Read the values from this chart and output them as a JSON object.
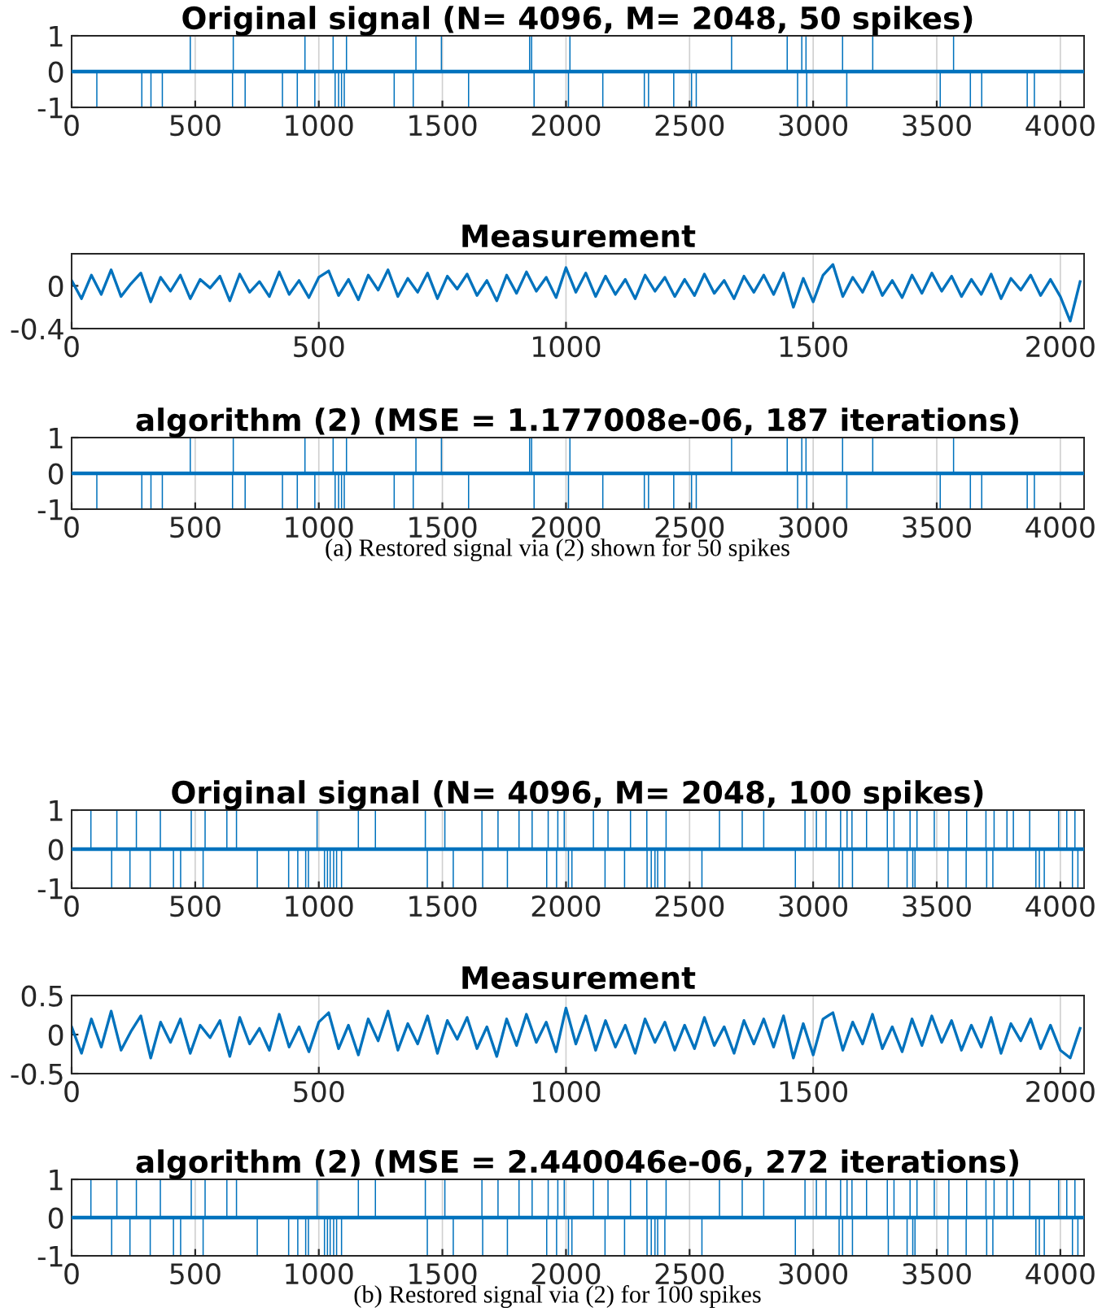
{
  "chart_data": [
    {
      "type": "bar",
      "title": "Original signal (N= 4096, M= 2048, 50 spikes)",
      "color": "#0072bd",
      "x": [
        102,
        284,
        321,
        367,
        480,
        651,
        654,
        702,
        853,
        913,
        944,
        984,
        1058,
        1066,
        1080,
        1092,
        1103,
        1112,
        1305,
        1382,
        1393,
        1496,
        1606,
        1853,
        1861,
        1871,
        2010,
        2016,
        2149,
        2317,
        2334,
        2436,
        2508,
        2527,
        2670,
        2895,
        2937,
        2954,
        2971,
        2974,
        3119,
        3136,
        3241,
        3514,
        3568,
        3636,
        3682,
        3866,
        3895
      ],
      "values": [
        -1,
        -1,
        -1,
        -1,
        1,
        -1,
        1,
        -1,
        -1,
        -1,
        1,
        -1,
        1,
        -1,
        -1,
        -1,
        -1,
        1,
        -1,
        -1,
        1,
        1,
        -1,
        1,
        1,
        -1,
        -1,
        1,
        -1,
        -1,
        -1,
        -1,
        -1,
        -1,
        1,
        1,
        -1,
        1,
        1,
        -1,
        1,
        -1,
        1,
        -1,
        1,
        -1,
        -1,
        -1,
        -1
      ],
      "ref_lines": [
        {
          "axis": "y",
          "value": 0,
          "color": "#0072bd"
        }
      ],
      "xlim": [
        0,
        4096
      ],
      "xticks": [
        0,
        500,
        1000,
        1500,
        2000,
        2500,
        3000,
        3500,
        4000
      ],
      "ylim": [
        -1,
        1
      ],
      "yticks": [
        -1,
        0,
        1
      ],
      "grid": "x"
    },
    {
      "type": "line",
      "title": "Measurement",
      "color": "#0072bd",
      "x": [
        0,
        20,
        40,
        60,
        80,
        100,
        120,
        140,
        160,
        180,
        200,
        220,
        240,
        260,
        280,
        300,
        320,
        340,
        360,
        380,
        400,
        420,
        440,
        460,
        480,
        500,
        520,
        540,
        560,
        580,
        600,
        620,
        640,
        660,
        680,
        700,
        720,
        740,
        760,
        780,
        800,
        820,
        840,
        860,
        880,
        900,
        920,
        940,
        960,
        980,
        1000,
        1020,
        1040,
        1060,
        1080,
        1100,
        1120,
        1140,
        1160,
        1180,
        1200,
        1220,
        1240,
        1260,
        1280,
        1300,
        1320,
        1340,
        1360,
        1380,
        1400,
        1420,
        1440,
        1460,
        1480,
        1500,
        1520,
        1540,
        1560,
        1580,
        1600,
        1620,
        1640,
        1660,
        1680,
        1700,
        1720,
        1740,
        1760,
        1780,
        1800,
        1820,
        1840,
        1860,
        1880,
        1900,
        1920,
        1940,
        1960,
        1980,
        2000,
        2020,
        2040
      ],
      "values": [
        0.05,
        -0.12,
        0.1,
        -0.08,
        0.15,
        -0.1,
        0.02,
        0.12,
        -0.15,
        0.08,
        -0.05,
        0.1,
        -0.12,
        0.06,
        -0.02,
        0.09,
        -0.14,
        0.11,
        -0.06,
        0.04,
        -0.1,
        0.13,
        -0.08,
        0.05,
        -0.11,
        0.08,
        0.14,
        -0.09,
        0.06,
        -0.13,
        0.1,
        -0.04,
        0.15,
        -0.1,
        0.07,
        -0.06,
        0.12,
        -0.12,
        0.09,
        -0.03,
        0.11,
        -0.09,
        0.05,
        -0.14,
        0.1,
        -0.07,
        0.13,
        -0.05,
        0.08,
        -0.11,
        0.17,
        -0.06,
        0.12,
        -0.1,
        0.09,
        -0.08,
        0.06,
        -0.12,
        0.1,
        -0.05,
        0.08,
        -0.1,
        0.06,
        -0.09,
        0.11,
        -0.07,
        0.05,
        -0.12,
        0.09,
        -0.06,
        0.1,
        -0.08,
        0.12,
        -0.2,
        0.07,
        -0.15,
        0.1,
        0.2,
        -0.1,
        0.08,
        -0.06,
        0.13,
        -0.09,
        0.05,
        -0.11,
        0.1,
        -0.07,
        0.12,
        -0.05,
        0.09,
        -0.1,
        0.06,
        -0.08,
        0.11,
        -0.12,
        0.07,
        -0.04,
        0.1,
        -0.09,
        0.06,
        -0.1,
        -0.33,
        0.04
      ],
      "xlim": [
        0,
        2048
      ],
      "xticks": [
        0,
        500,
        1000,
        1500,
        2000
      ],
      "ylim": [
        -0.4,
        0.3
      ],
      "yticks": [
        -0.4,
        0
      ],
      "grid": "x"
    },
    {
      "type": "bar",
      "title": "algorithm (2) (MSE = 1.177008e-06, 187 iterations)",
      "color": "#0072bd",
      "x": [
        102,
        284,
        321,
        367,
        480,
        651,
        654,
        702,
        853,
        913,
        944,
        984,
        1058,
        1066,
        1080,
        1092,
        1103,
        1112,
        1305,
        1382,
        1393,
        1496,
        1606,
        1853,
        1861,
        1871,
        2010,
        2016,
        2149,
        2317,
        2334,
        2436,
        2508,
        2527,
        2670,
        2895,
        2937,
        2954,
        2971,
        2974,
        3119,
        3136,
        3241,
        3514,
        3568,
        3636,
        3682,
        3866,
        3895
      ],
      "values": [
        -1,
        -1,
        -1,
        -1,
        1,
        -1,
        1,
        -1,
        -1,
        -1,
        1,
        -1,
        1,
        -1,
        -1,
        -1,
        -1,
        1,
        -1,
        -1,
        1,
        1,
        -1,
        1,
        1,
        -1,
        -1,
        1,
        -1,
        -1,
        -1,
        -1,
        -1,
        -1,
        1,
        1,
        -1,
        1,
        1,
        -1,
        1,
        -1,
        1,
        -1,
        1,
        -1,
        -1,
        -1,
        -1
      ],
      "ref_lines": [
        {
          "axis": "y",
          "value": 0,
          "color": "#0072bd"
        }
      ],
      "xlim": [
        0,
        4096
      ],
      "xticks": [
        0,
        500,
        1000,
        1500,
        2000,
        2500,
        3000,
        3500,
        4000
      ],
      "ylim": [
        -1,
        1
      ],
      "yticks": [
        -1,
        0,
        1
      ],
      "grid": "x",
      "annotations": [
        "(a) Restored signal via (2) shown for 50 spikes"
      ]
    },
    {
      "type": "bar",
      "title": "Original signal (N= 4096, M= 2048, 100 spikes)",
      "color": "#0072bd",
      "x": [
        78,
        162,
        183,
        236,
        262,
        318,
        359,
        412,
        441,
        484,
        532,
        540,
        628,
        667,
        751,
        878,
        915,
        947,
        958,
        993,
        1023,
        1035,
        1046,
        1060,
        1072,
        1092,
        1160,
        1229,
        1431,
        1439,
        1510,
        1544,
        1660,
        1663,
        1725,
        1763,
        1810,
        1863,
        1922,
        1928,
        1962,
        1967,
        1993,
        2010,
        2024,
        2111,
        2158,
        2170,
        2237,
        2261,
        2327,
        2328,
        2345,
        2360,
        2371,
        2400,
        2405,
        2550,
        2621,
        2713,
        2800,
        2928,
        2967,
        3013,
        3052,
        3105,
        3111,
        3119,
        3137,
        3157,
        3159,
        3216,
        3300,
        3304,
        3327,
        3380,
        3392,
        3403,
        3412,
        3420,
        3490,
        3545,
        3549,
        3619,
        3621,
        3699,
        3702,
        3727,
        3732,
        3784,
        3810,
        3876,
        3901,
        3915,
        3935,
        3993,
        4026,
        4049,
        4059,
        4071
      ],
      "values": [
        1,
        -1,
        1,
        -1,
        1,
        -1,
        1,
        -1,
        -1,
        1,
        -1,
        1,
        1,
        1,
        -1,
        -1,
        -1,
        -1,
        -1,
        1,
        -1,
        -1,
        -1,
        -1,
        -1,
        -1,
        1,
        1,
        1,
        -1,
        1,
        -1,
        1,
        -1,
        1,
        -1,
        1,
        1,
        -1,
        1,
        -1,
        1,
        1,
        -1,
        -1,
        1,
        -1,
        1,
        -1,
        1,
        1,
        -1,
        -1,
        -1,
        -1,
        -1,
        1,
        -1,
        1,
        1,
        1,
        -1,
        1,
        1,
        1,
        -1,
        1,
        -1,
        1,
        1,
        -1,
        1,
        1,
        -1,
        1,
        -1,
        1,
        -1,
        -1,
        1,
        1,
        -1,
        1,
        -1,
        1,
        1,
        -1,
        -1,
        1,
        1,
        1,
        1,
        -1,
        -1,
        -1,
        1,
        1,
        -1,
        1,
        -1
      ],
      "ref_lines": [
        {
          "axis": "y",
          "value": 0,
          "color": "#0072bd"
        }
      ],
      "xlim": [
        0,
        4096
      ],
      "xticks": [
        0,
        500,
        1000,
        1500,
        2000,
        2500,
        3000,
        3500,
        4000
      ],
      "ylim": [
        -1,
        1
      ],
      "yticks": [
        -1,
        0,
        1
      ],
      "grid": "x"
    },
    {
      "type": "line",
      "title": "Measurement",
      "color": "#0072bd",
      "x": [
        0,
        20,
        40,
        60,
        80,
        100,
        120,
        140,
        160,
        180,
        200,
        220,
        240,
        260,
        280,
        300,
        320,
        340,
        360,
        380,
        400,
        420,
        440,
        460,
        480,
        500,
        520,
        540,
        560,
        580,
        600,
        620,
        640,
        660,
        680,
        700,
        720,
        740,
        760,
        780,
        800,
        820,
        840,
        860,
        880,
        900,
        920,
        940,
        960,
        980,
        1000,
        1020,
        1040,
        1060,
        1080,
        1100,
        1120,
        1140,
        1160,
        1180,
        1200,
        1220,
        1240,
        1260,
        1280,
        1300,
        1320,
        1340,
        1360,
        1380,
        1400,
        1420,
        1440,
        1460,
        1480,
        1500,
        1520,
        1540,
        1560,
        1580,
        1600,
        1620,
        1640,
        1660,
        1680,
        1700,
        1720,
        1740,
        1760,
        1780,
        1800,
        1820,
        1840,
        1860,
        1880,
        1900,
        1920,
        1940,
        1960,
        1980,
        2000,
        2020,
        2040
      ],
      "values": [
        0.1,
        -0.24,
        0.2,
        -0.16,
        0.3,
        -0.2,
        0.04,
        0.24,
        -0.3,
        0.16,
        -0.1,
        0.2,
        -0.24,
        0.12,
        -0.04,
        0.18,
        -0.28,
        0.22,
        -0.12,
        0.08,
        -0.2,
        0.26,
        -0.16,
        0.1,
        -0.22,
        0.16,
        0.28,
        -0.18,
        0.12,
        -0.26,
        0.2,
        -0.08,
        0.3,
        -0.2,
        0.14,
        -0.12,
        0.24,
        -0.24,
        0.18,
        -0.06,
        0.22,
        -0.18,
        0.1,
        -0.28,
        0.2,
        -0.14,
        0.26,
        -0.1,
        0.16,
        -0.22,
        0.34,
        -0.12,
        0.24,
        -0.2,
        0.18,
        -0.16,
        0.12,
        -0.24,
        0.2,
        -0.1,
        0.16,
        -0.2,
        0.12,
        -0.18,
        0.22,
        -0.14,
        0.1,
        -0.24,
        0.18,
        -0.12,
        0.2,
        -0.16,
        0.24,
        -0.3,
        0.14,
        -0.26,
        0.2,
        0.28,
        -0.2,
        0.16,
        -0.12,
        0.26,
        -0.18,
        0.1,
        -0.22,
        0.2,
        -0.14,
        0.24,
        -0.1,
        0.18,
        -0.2,
        0.12,
        -0.16,
        0.22,
        -0.24,
        0.14,
        -0.08,
        0.2,
        -0.18,
        0.12,
        -0.2,
        -0.3,
        0.08
      ],
      "xlim": [
        0,
        2048
      ],
      "xticks": [
        0,
        500,
        1000,
        1500,
        2000
      ],
      "ylim": [
        -0.5,
        0.5
      ],
      "yticks": [
        -0.5,
        0,
        0.5
      ],
      "grid": "x"
    },
    {
      "type": "bar",
      "title": "algorithm (2) (MSE = 2.440046e-06, 272 iterations)",
      "color": "#0072bd",
      "x": [
        78,
        162,
        183,
        236,
        262,
        318,
        359,
        412,
        441,
        484,
        532,
        540,
        628,
        667,
        751,
        878,
        915,
        947,
        958,
        993,
        1023,
        1035,
        1046,
        1060,
        1072,
        1092,
        1160,
        1229,
        1431,
        1439,
        1510,
        1544,
        1660,
        1663,
        1725,
        1763,
        1810,
        1863,
        1922,
        1928,
        1962,
        1967,
        1993,
        2010,
        2024,
        2111,
        2158,
        2170,
        2237,
        2261,
        2327,
        2328,
        2345,
        2360,
        2371,
        2400,
        2405,
        2550,
        2621,
        2713,
        2800,
        2928,
        2967,
        3013,
        3052,
        3105,
        3111,
        3119,
        3137,
        3157,
        3159,
        3216,
        3300,
        3304,
        3327,
        3380,
        3392,
        3403,
        3412,
        3420,
        3490,
        3545,
        3549,
        3619,
        3621,
        3699,
        3702,
        3727,
        3732,
        3784,
        3810,
        3876,
        3901,
        3915,
        3935,
        3993,
        4026,
        4049,
        4059,
        4071
      ],
      "values": [
        1,
        -1,
        1,
        -1,
        1,
        -1,
        1,
        -1,
        -1,
        1,
        -1,
        1,
        1,
        1,
        -1,
        -1,
        -1,
        -1,
        -1,
        1,
        -1,
        -1,
        -1,
        -1,
        -1,
        -1,
        1,
        1,
        1,
        -1,
        1,
        -1,
        1,
        -1,
        1,
        -1,
        1,
        1,
        -1,
        1,
        -1,
        1,
        1,
        -1,
        -1,
        1,
        -1,
        1,
        -1,
        1,
        1,
        -1,
        -1,
        -1,
        -1,
        -1,
        1,
        -1,
        1,
        1,
        1,
        -1,
        1,
        1,
        1,
        -1,
        1,
        -1,
        1,
        1,
        -1,
        1,
        1,
        -1,
        1,
        -1,
        1,
        -1,
        -1,
        1,
        1,
        -1,
        1,
        -1,
        1,
        1,
        -1,
        -1,
        1,
        1,
        1,
        1,
        -1,
        -1,
        -1,
        1,
        1,
        -1,
        1,
        -1
      ],
      "ref_lines": [
        {
          "axis": "y",
          "value": 0,
          "color": "#0072bd"
        }
      ],
      "xlim": [
        0,
        4096
      ],
      "xticks": [
        0,
        500,
        1000,
        1500,
        2000,
        2500,
        3000,
        3500,
        4000
      ],
      "ylim": [
        -1,
        1
      ],
      "yticks": [
        -1,
        0,
        1
      ],
      "grid": "x",
      "annotations": [
        "(b) Restored signal via (2) for 100 spikes"
      ]
    }
  ]
}
